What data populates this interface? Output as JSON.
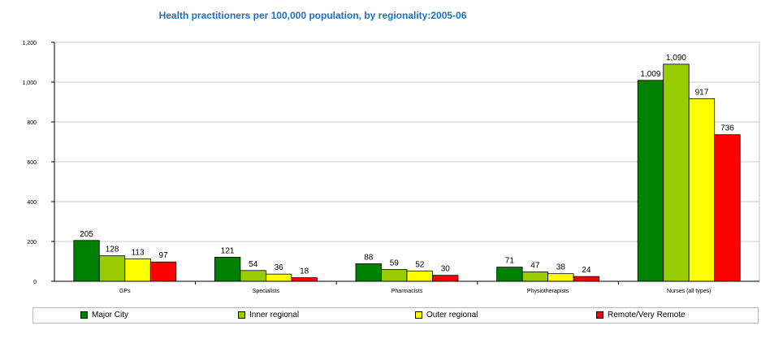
{
  "chart_data": {
    "type": "bar",
    "title": "Health practitioners per 100,000 population, by regionality:2005-06",
    "xlabel": "",
    "ylabel": "",
    "ylim": [
      0,
      1200
    ],
    "yticks": [
      "0",
      "200",
      "400",
      "600",
      "800",
      "1,000",
      "1,200"
    ],
    "ytick_values": [
      0,
      200,
      400,
      600,
      800,
      1000,
      1200
    ],
    "grid": true,
    "legend_position": "bottom",
    "categories": [
      "GPs",
      "Specialists",
      "Pharmacists",
      "Physiotherapists",
      "Nurses (all types)"
    ],
    "series": [
      {
        "name": "Major City",
        "color": "#008000",
        "values": [
          205,
          121,
          88,
          71,
          1009
        ],
        "labels": [
          "205",
          "121",
          "88",
          "71",
          "1,009"
        ]
      },
      {
        "name": "Inner regional",
        "color": "#99cc00",
        "values": [
          128,
          54,
          59,
          47,
          1090
        ],
        "labels": [
          "128",
          "54",
          "59",
          "47",
          "1,090"
        ]
      },
      {
        "name": "Outer regional",
        "color": "#ffff00",
        "values": [
          113,
          36,
          52,
          38,
          917
        ],
        "labels": [
          "113",
          "36",
          "52",
          "38",
          "917"
        ]
      },
      {
        "name": "Remote/Very Remote",
        "color": "#ff0000",
        "values": [
          97,
          18,
          30,
          24,
          736
        ],
        "labels": [
          "97",
          "18",
          "30",
          "24",
          "736"
        ]
      }
    ]
  }
}
